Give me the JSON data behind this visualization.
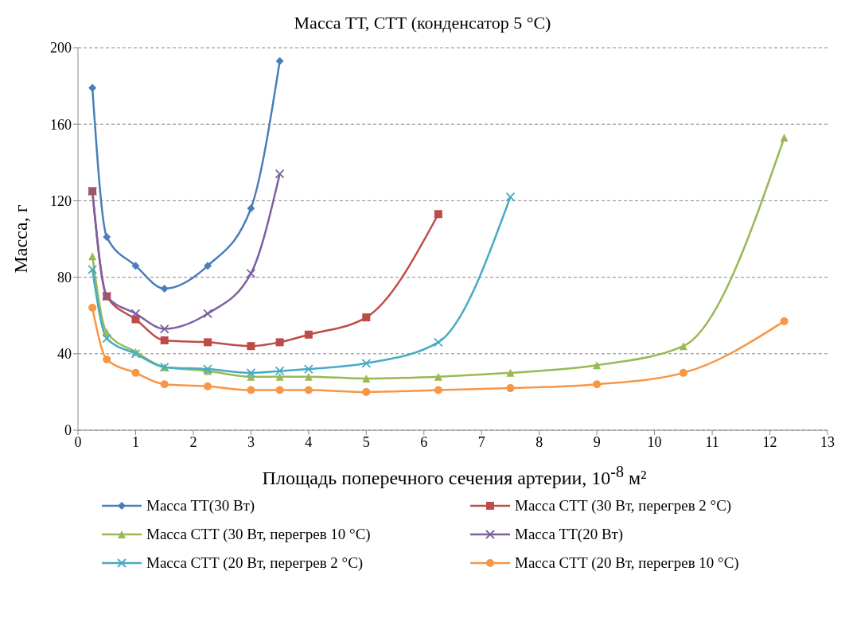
{
  "chart_data": {
    "type": "line",
    "title": "Масса ТТ, СТТ (конденсатор  5 °С)",
    "xlabel": "Площадь поперечного сечения артерии,  10$^{-8}$ м²",
    "ylabel": "Масса, г",
    "xlim": [
      0,
      13
    ],
    "xticks": [
      0,
      1,
      2,
      3,
      4,
      5,
      6,
      7,
      8,
      9,
      10,
      11,
      12,
      13
    ],
    "ylim": [
      0,
      200
    ],
    "yticks": [
      0,
      40,
      80,
      120,
      160,
      200
    ],
    "grid": "y",
    "legend": "bottom",
    "series": [
      {
        "name": "Масса ТТ(30 Вт)",
        "color": "#4a7ebb",
        "marker": "diamond",
        "x": [
          0.25,
          0.5,
          1,
          1.5,
          2.25,
          3,
          3.5
        ],
        "values": [
          179,
          101,
          86,
          74,
          86,
          116,
          193
        ]
      },
      {
        "name": "Масса СТТ (30 Вт, перегрев 2 °С)",
        "color": "#be4b48",
        "marker": "square",
        "x": [
          0.25,
          0.5,
          1,
          1.5,
          2.25,
          3,
          3.5,
          4,
          5,
          6.25
        ],
        "values": [
          125,
          70,
          58,
          47,
          46,
          44,
          46,
          50,
          59,
          113
        ]
      },
      {
        "name": "Масса СТТ (30 Вт, перегрев 10 °С)",
        "color": "#98b954",
        "marker": "triangle",
        "x": [
          0.25,
          0.5,
          1,
          1.5,
          2.25,
          3,
          3.5,
          4,
          5,
          6.25,
          7.5,
          9,
          10.5,
          12.25
        ],
        "values": [
          91,
          51,
          41,
          33,
          31,
          28,
          28,
          28,
          27,
          28,
          30,
          34,
          44,
          153
        ]
      },
      {
        "name": "Масса ТТ(20 Вт)",
        "color": "#7d60a0",
        "marker": "cross",
        "x": [
          0.25,
          0.5,
          1,
          1.5,
          2.25,
          3,
          3.5
        ],
        "values": [
          125,
          70,
          61,
          53,
          61,
          82,
          134
        ]
      },
      {
        "name": "Масса СТТ (20 Вт, перегрев 2 °С)",
        "color": "#46aac5",
        "marker": "cross",
        "x": [
          0.25,
          0.5,
          1,
          1.5,
          2.25,
          3,
          3.5,
          4,
          5,
          6.25,
          7.5
        ],
        "values": [
          84,
          48,
          40,
          33,
          32,
          30,
          31,
          32,
          35,
          46,
          122
        ]
      },
      {
        "name": "Масса СТТ (20 Вт, перегрев 10 °С)",
        "color": "#f79646",
        "marker": "circle",
        "x": [
          0.25,
          0.5,
          1,
          1.5,
          2.25,
          3,
          3.5,
          4,
          5,
          6.25,
          7.5,
          9,
          10.5,
          12.25
        ],
        "values": [
          64,
          37,
          30,
          24,
          23,
          21,
          21,
          21,
          20,
          21,
          22,
          24,
          30,
          57
        ]
      }
    ]
  }
}
